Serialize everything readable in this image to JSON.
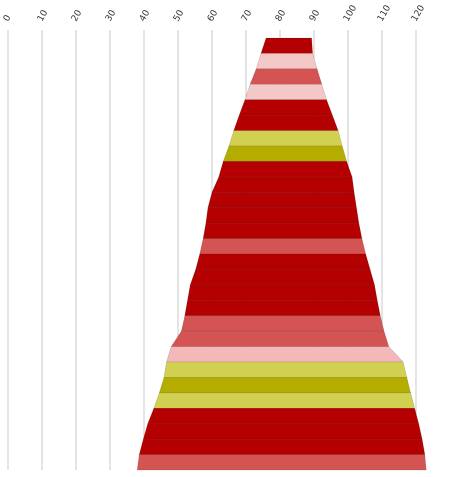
{
  "chart_data": {
    "type": "area",
    "x_axis": {
      "min": 0,
      "max": 125,
      "ticks": [
        0,
        10,
        20,
        30,
        40,
        50,
        60,
        70,
        80,
        90,
        100,
        110,
        120
      ],
      "tick_labels": [
        "0",
        "10",
        "20",
        "30",
        "40",
        "50",
        "60",
        "70",
        "80",
        "90",
        "100",
        "110",
        "120"
      ],
      "grid": true,
      "position": "top"
    },
    "title": "",
    "xlabel": "",
    "ylabel": "",
    "bands": [
      {
        "left_start": 75.9,
        "right_start": 89.3,
        "left_end": 74.4,
        "right_end": 89.6,
        "color": "#b40000"
      },
      {
        "left_start": 74.4,
        "right_start": 89.6,
        "left_end": 73.0,
        "right_end": 90.9,
        "color": "#f5c8c8"
      },
      {
        "left_start": 73.0,
        "right_start": 90.9,
        "left_end": 71.2,
        "right_end": 92.3,
        "color": "#d45454"
      },
      {
        "left_start": 71.2,
        "right_start": 92.3,
        "left_end": 69.7,
        "right_end": 93.7,
        "color": "#f5c8c8"
      },
      {
        "left_start": 69.7,
        "right_start": 93.7,
        "left_end": 68.0,
        "right_end": 95.4,
        "color": "#b40000"
      },
      {
        "left_start": 68.0,
        "right_start": 95.4,
        "left_end": 66.4,
        "right_end": 97.1,
        "color": "#b40000"
      },
      {
        "left_start": 66.4,
        "right_start": 97.1,
        "left_end": 65.0,
        "right_end": 98.3,
        "color": "#d2d050"
      },
      {
        "left_start": 65.0,
        "right_start": 98.3,
        "left_end": 63.3,
        "right_end": 99.6,
        "color": "#b5ac00"
      },
      {
        "left_start": 63.3,
        "right_start": 99.6,
        "left_end": 62.0,
        "right_end": 101.2,
        "color": "#b40000"
      },
      {
        "left_start": 62.0,
        "right_start": 101.2,
        "left_end": 60.0,
        "right_end": 101.8,
        "color": "#b40000"
      },
      {
        "left_start": 60.0,
        "right_start": 101.8,
        "left_end": 58.8,
        "right_end": 102.5,
        "color": "#b40000"
      },
      {
        "left_start": 58.8,
        "right_start": 102.5,
        "left_end": 58.2,
        "right_end": 103.2,
        "color": "#b40000"
      },
      {
        "left_start": 58.2,
        "right_start": 103.2,
        "left_end": 57.4,
        "right_end": 104.1,
        "color": "#b40000"
      },
      {
        "left_start": 57.4,
        "right_start": 104.1,
        "left_end": 56.4,
        "right_end": 105.2,
        "color": "#d45454"
      },
      {
        "left_start": 56.4,
        "right_start": 105.2,
        "left_end": 55.2,
        "right_end": 106.5,
        "color": "#b40000"
      },
      {
        "left_start": 55.2,
        "right_start": 106.5,
        "left_end": 53.6,
        "right_end": 107.8,
        "color": "#b40000"
      },
      {
        "left_start": 53.6,
        "right_start": 107.8,
        "left_end": 52.8,
        "right_end": 108.6,
        "color": "#b40000"
      },
      {
        "left_start": 52.8,
        "right_start": 108.6,
        "left_end": 52.0,
        "right_end": 109.5,
        "color": "#b40000"
      },
      {
        "left_start": 52.0,
        "right_start": 109.5,
        "left_end": 51.0,
        "right_end": 110.6,
        "color": "#d45454"
      },
      {
        "left_start": 51.0,
        "right_start": 110.6,
        "left_end": 48.0,
        "right_end": 112.0,
        "color": "#d45454"
      },
      {
        "left_start": 48.0,
        "right_start": 112.0,
        "left_end": 46.6,
        "right_end": 116.2,
        "color": "#f5b8b8"
      },
      {
        "left_start": 46.6,
        "right_start": 116.2,
        "left_end": 45.9,
        "right_end": 117.3,
        "color": "#d2d050"
      },
      {
        "left_start": 45.9,
        "right_start": 117.3,
        "left_end": 44.5,
        "right_end": 118.4,
        "color": "#b5ac00"
      },
      {
        "left_start": 44.5,
        "right_start": 118.4,
        "left_end": 42.9,
        "right_end": 119.6,
        "color": "#d2d050"
      },
      {
        "left_start": 42.9,
        "right_start": 119.6,
        "left_end": 41.1,
        "right_end": 120.8,
        "color": "#b40000"
      },
      {
        "left_start": 41.1,
        "right_start": 120.8,
        "left_end": 39.8,
        "right_end": 121.8,
        "color": "#b40000"
      },
      {
        "left_start": 39.8,
        "right_start": 121.8,
        "left_end": 38.6,
        "right_end": 122.6,
        "color": "#b40000"
      },
      {
        "left_start": 38.6,
        "right_start": 122.6,
        "left_end": 38.0,
        "right_end": 123.0,
        "color": "#d45454"
      }
    ]
  }
}
